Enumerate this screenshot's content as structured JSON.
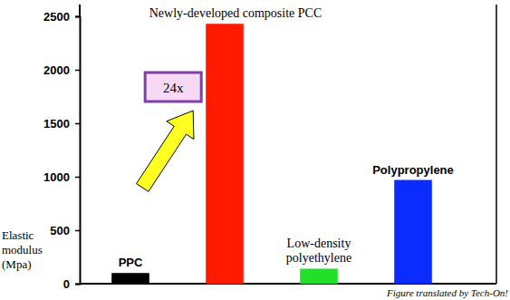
{
  "chart_data": {
    "type": "bar",
    "categories": [
      "PPC",
      "Newly-developed composite PCC",
      "Low-density polyethylene",
      "Polypropylene"
    ],
    "values": [
      100,
      2430,
      140,
      970
    ],
    "colors": [
      "#000000",
      "#ff1a00",
      "#22e02a",
      "#0a2cff"
    ],
    "y_label": "Elastic modulus (Mpa)",
    "ylim": [
      0,
      2500
    ],
    "yticks": [
      0,
      500,
      1000,
      1500,
      2000,
      2500
    ],
    "annotations": [
      "24x",
      "Figure translated by Tech-On!"
    ],
    "grid": false,
    "data_labels": false,
    "tick_labels": "y"
  }
}
